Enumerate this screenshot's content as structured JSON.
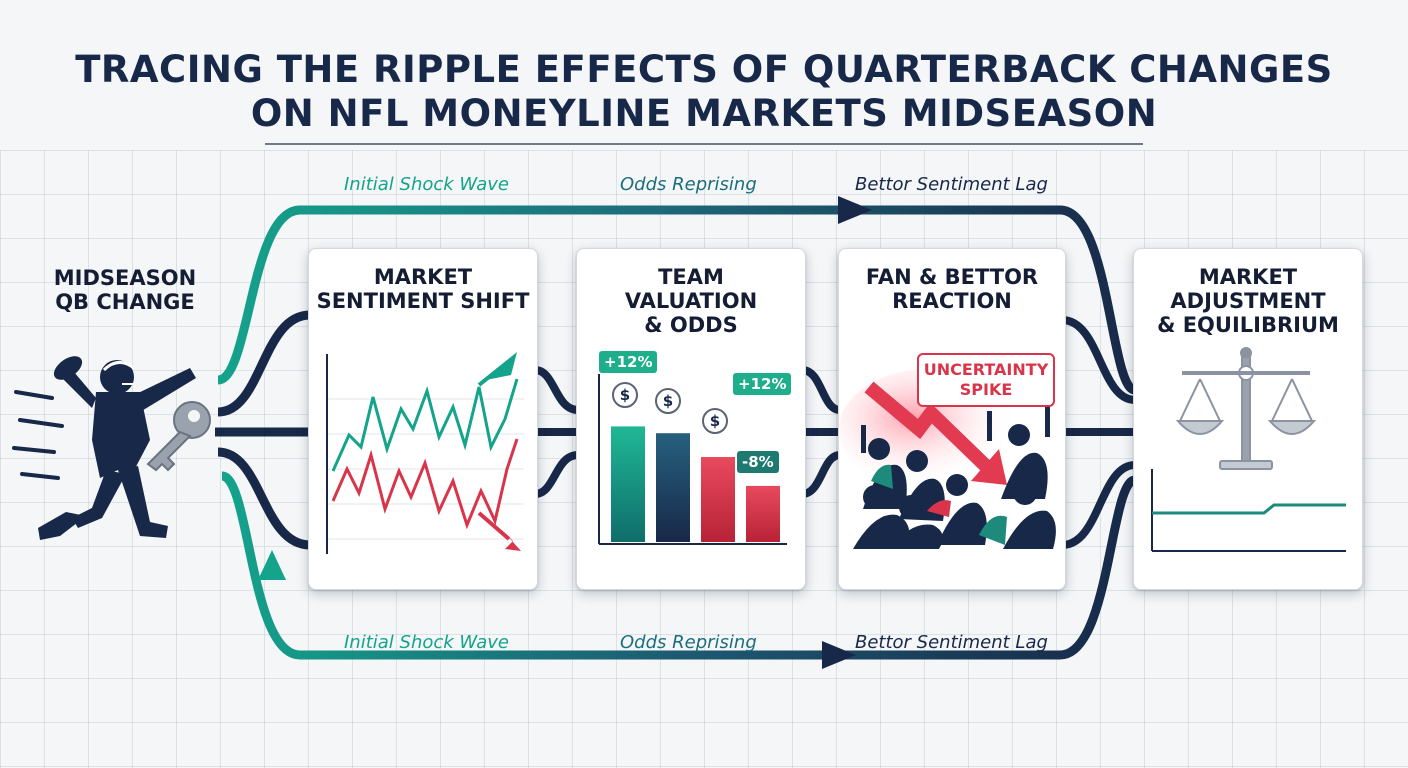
{
  "title": {
    "line1": "TRACING THE RIPPLE EFFECTS OF QUARTERBACK CHANGES",
    "line2": "ON NFL MONEYLINE MARKETS MIDSEASON"
  },
  "start": {
    "line1": "MIDSEASON",
    "line2": "QB CHANGE",
    "icon": "quarterback-key-icon"
  },
  "top_flow_labels": [
    "Initial Shock Wave",
    "Odds Reprising",
    "Bettor Sentiment Lag"
  ],
  "bottom_flow_labels": [
    "Initial Shock Wave",
    "Odds Reprising",
    "Bettor Sentiment Lag"
  ],
  "cards": [
    {
      "line1": "MARKET",
      "line2": "SENTIMENT SHIFT",
      "line3": "",
      "icon": "line-chart-icon"
    },
    {
      "line1": "TEAM",
      "line2": "VALUATION",
      "line3": "& ODDS",
      "icon": "bar-chart-icon"
    },
    {
      "line1": "FAN & BETTOR",
      "line2": "REACTION",
      "line3": "",
      "icon": "crowd-icon"
    },
    {
      "line1": "MARKET",
      "line2": "ADJUSTMENT",
      "line3": "& EQUILIBRIUM",
      "icon": "scales-icon"
    }
  ],
  "valuation_badges": [
    "+12%",
    "+12%",
    "-8%"
  ],
  "valuation_bars": [
    0.68,
    0.64,
    0.5,
    0.33
  ],
  "dollar_symbol": "$",
  "uncertainty": {
    "line1": "UNCERTAINTY",
    "line2": "SPIKE"
  },
  "colors": {
    "navy": "#182848",
    "teal": "#14a38b",
    "red": "#d9354a",
    "accent_green": "#1fae8c"
  }
}
